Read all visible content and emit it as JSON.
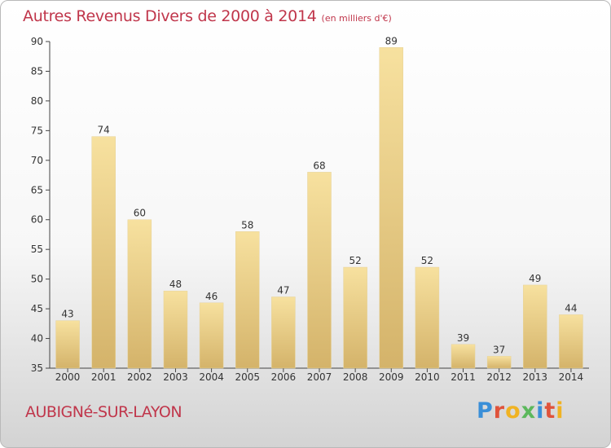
{
  "title": "Autres Revenus Divers de 2000 à 2014",
  "subtitle": "(en milliers d'€)",
  "location": "AUBIGNé-SUR-LAYON",
  "logo": {
    "letters": [
      "P",
      "r",
      "o",
      "x",
      "i",
      "t",
      "i"
    ],
    "colors": [
      "#3a8fd8",
      "#e0533b",
      "#f0b323",
      "#5cb85c",
      "#3a8fd8",
      "#e0533b",
      "#f0b323"
    ]
  },
  "chart_data": {
    "type": "bar",
    "title": "Autres Revenus Divers de 2000 à 2014",
    "subtitle": "(en milliers d'€)",
    "categories": [
      "2000",
      "2001",
      "2002",
      "2003",
      "2004",
      "2005",
      "2006",
      "2007",
      "2008",
      "2009",
      "2010",
      "2011",
      "2012",
      "2013",
      "2014"
    ],
    "values": [
      43,
      74,
      60,
      48,
      46,
      58,
      47,
      68,
      52,
      89,
      52,
      39,
      37,
      49,
      44
    ],
    "ylim": [
      35,
      90
    ],
    "yticks": [
      35,
      40,
      45,
      50,
      55,
      60,
      65,
      70,
      75,
      80,
      85,
      90
    ],
    "grid": false,
    "bar_color_light": "#f7e19f",
    "bar_color_dark": "#d4b36a"
  }
}
